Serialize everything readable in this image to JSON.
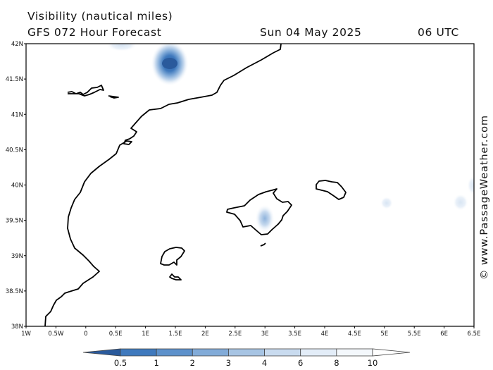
{
  "header": {
    "title": "Visibility (nautical miles)",
    "subtitle": "GFS 072 Hour Forecast",
    "valid_date": "Sun 04 May 2025",
    "valid_time": "06 UTC"
  },
  "watermark": "© www.PassageWeather.com",
  "map": {
    "lon_range": [
      -1,
      6.5
    ],
    "lat_range": [
      38,
      42
    ],
    "lat_ticks": [
      "42N",
      "41.5N",
      "41N",
      "40.5N",
      "40N",
      "39.5N",
      "39N",
      "38.5N",
      "38N"
    ],
    "lon_ticks": [
      "1W",
      "0.5W",
      "0",
      "0.5E",
      "1E",
      "1.5E",
      "2E",
      "2.5E",
      "3E",
      "3.5E",
      "4E",
      "4.5E",
      "5E",
      "5.5E",
      "6E",
      "6.5E"
    ]
  },
  "legend": {
    "labels": [
      "0.5",
      "1",
      "2",
      "3",
      "4",
      "6",
      "8",
      "10"
    ],
    "colors": [
      "#2a5a9c",
      "#3f79bd",
      "#5d91cb",
      "#82abd8",
      "#a7c4e3",
      "#c9dbef",
      "#e3edf8",
      "#f4f8fc",
      "#ffffff"
    ]
  },
  "low_visibility_areas": [
    {
      "lon": 1.37,
      "lat": 41.73,
      "level": "1"
    },
    {
      "lon": 0.6,
      "lat": 42.0,
      "level": "10"
    },
    {
      "lon": 2.98,
      "lat": 39.53,
      "level": "6"
    },
    {
      "lon": 5.02,
      "lat": 39.76,
      "level": "10"
    },
    {
      "lon": 6.26,
      "lat": 39.77,
      "level": "10"
    },
    {
      "lon": 6.5,
      "lat": 40.0,
      "level": "10"
    }
  ]
}
